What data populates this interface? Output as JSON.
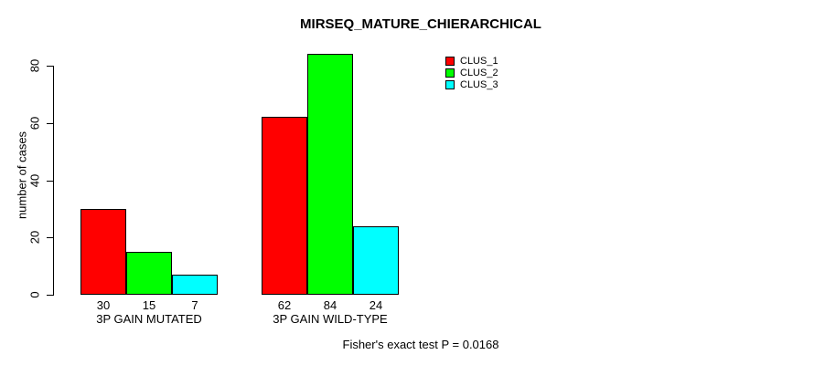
{
  "chart_data": {
    "type": "bar",
    "title": "MIRSEQ_MATURE_CHIERARCHICAL",
    "categories": [
      "3P GAIN MUTATED",
      "3P GAIN WILD-TYPE"
    ],
    "series": [
      {
        "name": "CLUS_1",
        "color": "#FF0000",
        "values": [
          30,
          62
        ]
      },
      {
        "name": "CLUS_2",
        "color": "#00FF00",
        "values": [
          15,
          84
        ]
      },
      {
        "name": "CLUS_3",
        "color": "#00FFFF",
        "values": [
          7,
          24
        ]
      }
    ],
    "show_bar_values": true,
    "bar_value_labels": [
      [
        30,
        15,
        7
      ],
      [
        62,
        84,
        24
      ]
    ],
    "xlabel": "",
    "ylabel": "number of cases",
    "ylim": [
      0,
      80
    ],
    "yticks": [
      0,
      20,
      40,
      60,
      80
    ],
    "grid": false,
    "legend_position": "top-right",
    "annotation": "Fisher's exact test P = 0.0168",
    "background_color": "#FFFFFF",
    "axis_color": "#000000"
  }
}
